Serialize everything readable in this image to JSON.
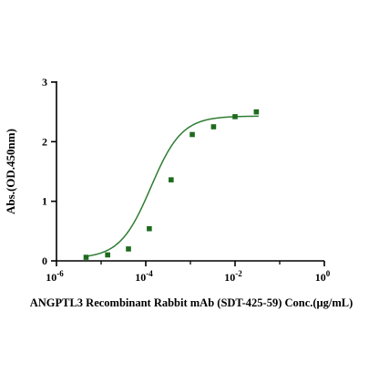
{
  "chart_data": {
    "type": "scatter",
    "title": "",
    "xlabel": "ANGPTL3 Recombinant Rabbit mAb (SDT-425-59) Conc.(μg/mL)",
    "ylabel": "Abs.(OD.450nm)",
    "xscale": "log10",
    "xlim": [
      1e-06,
      1
    ],
    "ylim": [
      0,
      3
    ],
    "xticks": [
      {
        "value": 1e-06,
        "base": "10",
        "exp": "-6"
      },
      {
        "value": 0.0001,
        "base": "10",
        "exp": "-4"
      },
      {
        "value": 0.01,
        "base": "10",
        "exp": "-2"
      },
      {
        "value": 1,
        "base": "10",
        "exp": "0"
      }
    ],
    "yticks": [
      {
        "value": 0,
        "label": "0"
      },
      {
        "value": 1,
        "label": "1"
      },
      {
        "value": 2,
        "label": "2"
      },
      {
        "value": 3,
        "label": "3"
      }
    ],
    "grid": false,
    "legend": "none",
    "marker_color": "#1e6b1e",
    "curve_color": "#2e7d32",
    "series": [
      {
        "points": [
          {
            "x": 4.6e-06,
            "y": 0.06
          },
          {
            "x": 1.4e-05,
            "y": 0.1
          },
          {
            "x": 4.1e-05,
            "y": 0.2
          },
          {
            "x": 0.00012,
            "y": 0.54
          },
          {
            "x": 0.00037,
            "y": 1.36
          },
          {
            "x": 0.0011,
            "y": 2.12
          },
          {
            "x": 0.0033,
            "y": 2.25
          },
          {
            "x": 0.01,
            "y": 2.42
          },
          {
            "x": 0.03,
            "y": 2.5
          }
        ],
        "fit": {
          "type": "4PL",
          "bottom": 0.04,
          "top": 2.43,
          "ec50": 0.00013,
          "hill": 1.25
        }
      }
    ]
  }
}
